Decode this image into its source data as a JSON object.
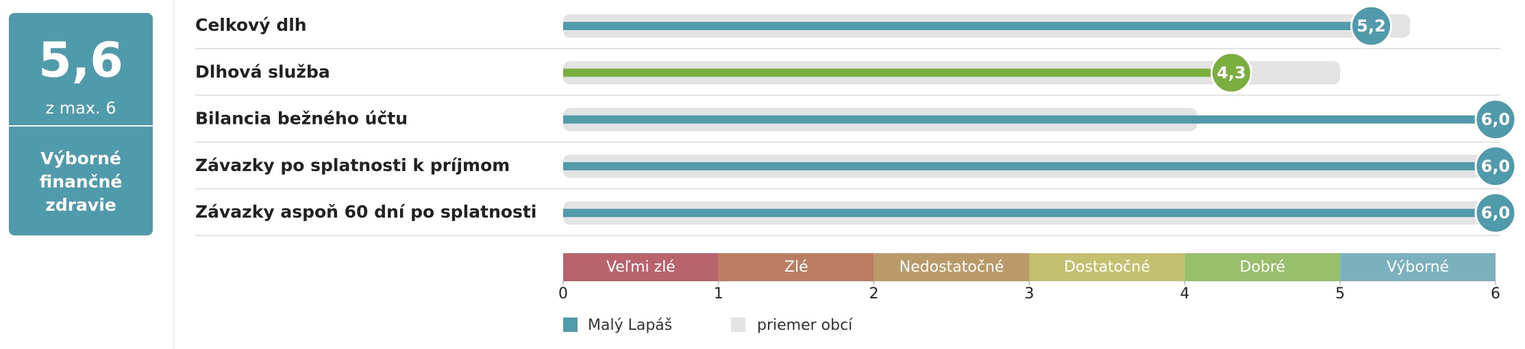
{
  "score": {
    "value": "5,6",
    "caption": "z max. 6",
    "rating": "Výborné finančné zdravie",
    "color": "#4f9aab"
  },
  "chart_data": {
    "type": "bar",
    "orientation": "horizontal",
    "categories": [
      "Celkový dlh",
      "Dlhová služba",
      "Bilancia bežného účtu",
      "Závazky po splatnosti k príjmom",
      "Závazky aspoň 60 dní po splatnosti"
    ],
    "series": [
      {
        "name": "Malý Lapáš",
        "color": "#4f9aab",
        "colors": [
          "#4f9aab",
          "#7aaf3f",
          "#4f9aab",
          "#4f9aab",
          "#4f9aab"
        ],
        "values": [
          5.2,
          4.3,
          6.0,
          6.0,
          6.0
        ],
        "value_labels": [
          "5,2",
          "4,3",
          "6,0",
          "6,0",
          "6,0"
        ]
      },
      {
        "name": "priemer obcí",
        "color": "#e3e3e3",
        "values": [
          5.45,
          5.0,
          4.08,
          6.0,
          6.0
        ]
      }
    ],
    "xlim": [
      0,
      6
    ],
    "xticks": [
      0,
      1,
      2,
      3,
      4,
      5,
      6
    ],
    "bands": [
      {
        "label": "Veľmi zlé",
        "from": 0,
        "to": 1,
        "color": "#b9636d"
      },
      {
        "label": "Zlé",
        "from": 1,
        "to": 2,
        "color": "#bb7d62"
      },
      {
        "label": "Nedostatočné",
        "from": 2,
        "to": 3,
        "color": "#bb9a69"
      },
      {
        "label": "Dostatočné",
        "from": 3,
        "to": 4,
        "color": "#c3c170"
      },
      {
        "label": "Dobré",
        "from": 4,
        "to": 5,
        "color": "#98bf6c"
      },
      {
        "label": "Výborné",
        "from": 5,
        "to": 6,
        "color": "#7bb1bd"
      }
    ]
  }
}
